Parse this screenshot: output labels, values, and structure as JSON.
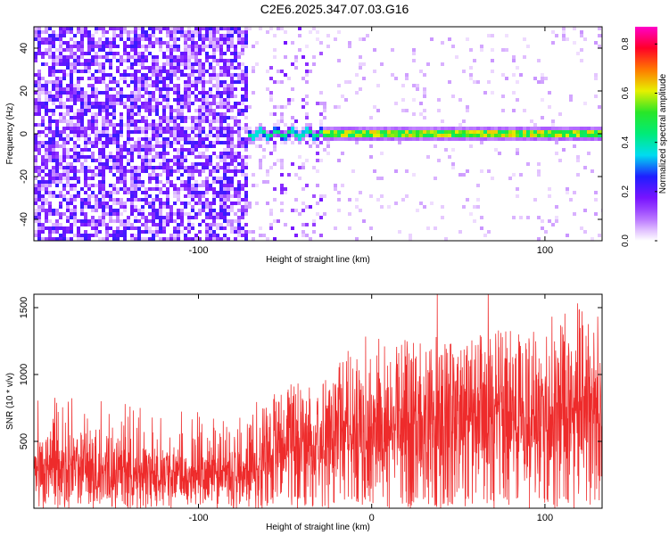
{
  "figure_title": "C2E6.2025.347.07.03.G16",
  "chart_data": [
    {
      "type": "heatmap",
      "title": "C2E6.2025.347.07.03.G16",
      "xlabel": "Height of straight line (km)",
      "ylabel": "Frequency (Hz)",
      "xlim": [
        -195,
        133
      ],
      "ylim": [
        -50,
        50
      ],
      "x_ticks": [
        -100,
        0,
        100
      ],
      "x_tick_labels": [
        "-100",
        "",
        "100"
      ],
      "y_ticks": [
        -40,
        -20,
        0,
        20,
        40
      ],
      "y_tick_labels": [
        "-40",
        "-20",
        "0",
        "20",
        "40"
      ],
      "grid": false,
      "colorbar": {
        "label": "Normalized spectral amplitude",
        "range": [
          0,
          0.87
        ],
        "ticks": [
          0.0,
          0.2,
          0.4,
          0.6,
          0.8
        ],
        "tick_labels": [
          "0.0",
          "0.2",
          "0.4",
          "0.6",
          "0.8"
        ],
        "colormap": "rainbow (white-purple-blue-cyan-green-yellow-red-magenta)"
      },
      "features": {
        "noise_region_x": [
          -195,
          -73
        ],
        "noise_amplitude": 0.22,
        "signal_start_x": -73,
        "signal_frequency_hz": 0,
        "signal_peak_amplitude": 0.8
      }
    },
    {
      "type": "line",
      "xlabel": "Height of straight line (km)",
      "ylabel": "SNR (10 * v/v)",
      "xlim": [
        -195,
        133
      ],
      "ylim": [
        0,
        1600
      ],
      "x_ticks": [
        -100,
        0,
        100
      ],
      "x_tick_labels": [
        "-100",
        "0",
        "100"
      ],
      "y_ticks": [
        500,
        1000,
        1500
      ],
      "y_tick_labels": [
        "500",
        "1000",
        "1500"
      ],
      "grid": false,
      "series": [
        {
          "color": "#ee2b2b",
          "envelope": {
            "x": [
              -195,
              -170,
              -150,
              -130,
              -110,
              -90,
              -75,
              -65,
              -60,
              -45,
              -35,
              -25,
              -15,
              -5,
              5,
              20,
              40,
              60,
              80,
              100,
              120,
              133
            ],
            "baseline": [
              300,
              290,
              270,
              260,
              250,
              240,
              240,
              300,
              420,
              450,
              460,
              480,
              520,
              560,
              590,
              620,
              650,
              660,
              680,
              700,
              710,
              700
            ],
            "peak": [
              820,
              860,
              790,
              770,
              740,
              700,
              680,
              830,
              930,
              940,
              980,
              1100,
              1150,
              1170,
              1210,
              1260,
              1290,
              1300,
              1350,
              1400,
              1600,
              1450
            ]
          }
        }
      ]
    }
  ]
}
